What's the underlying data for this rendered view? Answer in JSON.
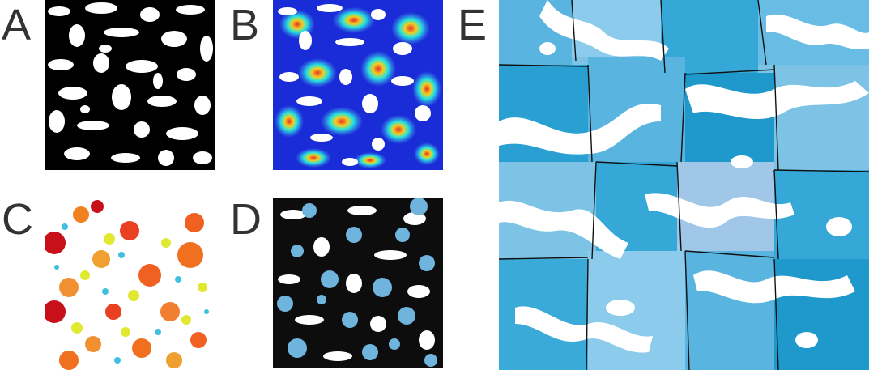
{
  "labels": {
    "a": "A",
    "b": "B",
    "c": "C",
    "d": "D",
    "e": "E"
  },
  "panels": {
    "a": {
      "description_colors": {
        "solid": "#000000",
        "pore": "#ffffff"
      }
    },
    "b": {
      "description_colors": {
        "low": "#1a2bd8",
        "mid": "#24e4e0",
        "high": "#e8302a"
      }
    },
    "c": {
      "description_colors": {
        "small": "#2a6ae0",
        "large": "#c8101a"
      }
    },
    "d": {
      "description_colors": {
        "solid": "#0d0d0d",
        "ball": "#6fb4dc"
      }
    },
    "e": {
      "description_colors": {
        "region": "#35a8d8",
        "boundary": "#101010"
      }
    }
  }
}
